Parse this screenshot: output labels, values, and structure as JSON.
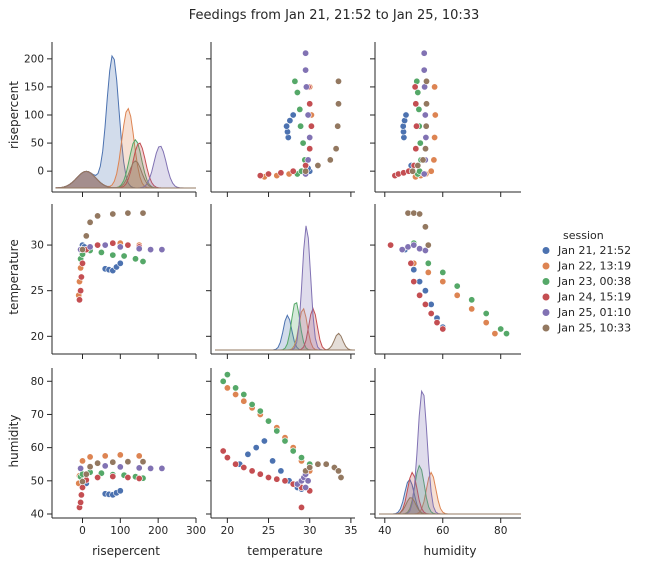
{
  "title": "Feedings from Jan 21, 21:52 to Jan 25, 10:33",
  "legend": {
    "title": "session",
    "placement": "right",
    "entries": [
      {
        "label": "Jan 21, 21:52",
        "color": "#4c72b0"
      },
      {
        "label": "Jan 22, 13:19",
        "color": "#dd8452"
      },
      {
        "label": "Jan 23, 00:38",
        "color": "#55a868"
      },
      {
        "label": "Jan 24, 15:19",
        "color": "#c44e52"
      },
      {
        "label": "Jan 25, 01:10",
        "color": "#8172b3"
      },
      {
        "label": "Jan 25, 10:33",
        "color": "#937860"
      }
    ]
  },
  "chart_data": {
    "type": "scatter",
    "kind": "pairplot",
    "variables": [
      "risepercent",
      "temperature",
      "humidity"
    ],
    "hue": "session",
    "diagonal": "kde",
    "axes": {
      "risepercent": {
        "label": "risepercent",
        "range": [
          -70,
          300
        ],
        "ticks": [
          0,
          100,
          200,
          300
        ],
        "row_ticks": [
          0,
          50,
          100,
          150,
          200
        ]
      },
      "temperature": {
        "label": "temperature",
        "range": [
          18.5,
          35.5
        ],
        "ticks": [
          20,
          25,
          30,
          35
        ],
        "row_ticks": [
          20,
          25,
          30
        ]
      },
      "humidity": {
        "label": "humidity",
        "range": [
          38,
          87
        ],
        "ticks": [
          40,
          60,
          80
        ],
        "row_ticks": [
          40,
          50,
          60,
          70,
          80
        ]
      }
    },
    "series": [
      {
        "name": "Jan 21, 21:52",
        "color": "#4c72b0",
        "rise_peak": 80,
        "kde_peak_rise": 220,
        "kde_peak_temp": 27.3,
        "kde_peak_hum": 48.5,
        "points_rise_temp": [
          [
            0,
            30
          ],
          [
            5,
            29.8
          ],
          [
            10,
            29.5
          ],
          [
            60,
            27.4
          ],
          [
            70,
            27.3
          ],
          [
            80,
            27.2
          ],
          [
            90,
            27.6
          ],
          [
            100,
            28.0
          ]
        ],
        "points_temp_hum": [
          [
            21.5,
            55
          ],
          [
            22.5,
            58
          ],
          [
            23.5,
            60
          ],
          [
            24.5,
            62
          ],
          [
            25.5,
            56
          ],
          [
            26.5,
            53
          ],
          [
            27.5,
            50
          ],
          [
            28.5,
            48
          ],
          [
            29,
            47.5
          ]
        ],
        "points_hum_temp": [
          [
            47,
            29.5
          ],
          [
            50,
            27.3
          ],
          [
            52,
            26
          ],
          [
            54,
            25
          ],
          [
            56,
            23.5
          ],
          [
            58,
            22
          ],
          [
            60,
            21
          ]
        ]
      },
      {
        "name": "Jan 22, 13:19",
        "color": "#dd8452",
        "rise_peak": 120,
        "kde_peak_rise": 132,
        "kde_peak_temp": 29.2,
        "kde_peak_hum": 56,
        "points_rise_temp": [
          [
            -10,
            24.5
          ],
          [
            -8,
            26
          ],
          [
            -5,
            27.5
          ],
          [
            0,
            29
          ],
          [
            20,
            29.8
          ],
          [
            60,
            30
          ],
          [
            100,
            30.2
          ],
          [
            150,
            30
          ]
        ],
        "points_temp_hum": [
          [
            20,
            78
          ],
          [
            21,
            76
          ],
          [
            22,
            74
          ],
          [
            23,
            72
          ],
          [
            24,
            70
          ],
          [
            25,
            68
          ],
          [
            26,
            66
          ],
          [
            27,
            63
          ],
          [
            28,
            60
          ],
          [
            29,
            56
          ],
          [
            30,
            53
          ]
        ],
        "points_hum_temp": [
          [
            48,
            29.8
          ],
          [
            50,
            28
          ],
          [
            55,
            27
          ],
          [
            60,
            26
          ],
          [
            65,
            24.5
          ],
          [
            70,
            23
          ],
          [
            75,
            21.5
          ],
          [
            78,
            20.3
          ]
        ]
      },
      {
        "name": "Jan 23, 00:38",
        "color": "#55a868",
        "rise_peak": 140,
        "kde_peak_rise": 80,
        "kde_peak_temp": 28.3,
        "kde_peak_hum": 52,
        "points_rise_temp": [
          [
            -5,
            28.5
          ],
          [
            0,
            29
          ],
          [
            20,
            29.4
          ],
          [
            50,
            29.2
          ],
          [
            80,
            28.9
          ],
          [
            110,
            28.8
          ],
          [
            140,
            28.5
          ],
          [
            160,
            28.2
          ]
        ],
        "points_temp_hum": [
          [
            19.5,
            80
          ],
          [
            20,
            82
          ],
          [
            21,
            78
          ],
          [
            22,
            76
          ],
          [
            23,
            73
          ],
          [
            24,
            71
          ],
          [
            25,
            68
          ],
          [
            26,
            65
          ],
          [
            27,
            62
          ],
          [
            28,
            59
          ],
          [
            29,
            57
          ],
          [
            30,
            55
          ]
        ],
        "points_hum_temp": [
          [
            50,
            30.2
          ],
          [
            55,
            28
          ],
          [
            60,
            27
          ],
          [
            65,
            25.5
          ],
          [
            70,
            24
          ],
          [
            75,
            22.5
          ],
          [
            80,
            20.8
          ],
          [
            82,
            20.3
          ]
        ]
      },
      {
        "name": "Jan 24, 15:19",
        "color": "#c44e52",
        "rise_peak": 150,
        "kde_peak_rise": 75,
        "kde_peak_temp": 30.4,
        "kde_peak_hum": 49.5,
        "points_rise_temp": [
          [
            -8,
            24
          ],
          [
            -5,
            25
          ],
          [
            -3,
            26.5
          ],
          [
            0,
            28
          ],
          [
            10,
            29.5
          ],
          [
            40,
            30
          ],
          [
            80,
            30.2
          ],
          [
            120,
            30
          ],
          [
            150,
            29.8
          ]
        ],
        "points_temp_hum": [
          [
            19.5,
            59
          ],
          [
            20,
            57
          ],
          [
            21,
            55
          ],
          [
            22,
            54
          ],
          [
            23,
            53
          ],
          [
            24,
            52
          ],
          [
            25,
            51
          ],
          [
            26,
            50.5
          ],
          [
            27,
            50
          ],
          [
            28,
            49
          ],
          [
            29,
            48
          ],
          [
            30,
            47
          ],
          [
            29,
            42
          ]
        ],
        "points_hum_temp": [
          [
            42,
            30
          ],
          [
            48,
            29.8
          ],
          [
            49,
            28
          ],
          [
            50,
            26
          ],
          [
            52,
            24.5
          ],
          [
            54,
            23.5
          ],
          [
            56,
            22.5
          ],
          [
            58,
            21.5
          ],
          [
            60,
            20.8
          ]
        ]
      },
      {
        "name": "Jan 25, 01:10",
        "color": "#8172b3",
        "rise_peak": 205,
        "kde_peak_rise": 70,
        "kde_peak_temp": 29.6,
        "kde_peak_hum": 53,
        "points_rise_temp": [
          [
            -5,
            29.5
          ],
          [
            20,
            29.8
          ],
          [
            60,
            30
          ],
          [
            100,
            29.8
          ],
          [
            150,
            29.6
          ],
          [
            180,
            29.5
          ],
          [
            210,
            29.5
          ]
        ],
        "points_temp_hum": [
          [
            28.5,
            49
          ],
          [
            29,
            50
          ],
          [
            29.3,
            51
          ],
          [
            29.5,
            52
          ],
          [
            29.8,
            50
          ],
          [
            29.5,
            48
          ]
        ],
        "points_hum_temp": [
          [
            46,
            29.5
          ],
          [
            48,
            29.8
          ],
          [
            50,
            30
          ],
          [
            52,
            29.6
          ],
          [
            54,
            29.4
          ]
        ]
      },
      {
        "name": "Jan 25, 10:33",
        "color": "#937860",
        "rise_peak": 140,
        "kde_peak_rise": 45,
        "kde_peak_temp": 33.5,
        "kde_peak_hum": 49,
        "points_rise_temp": [
          [
            0,
            29.5
          ],
          [
            10,
            31
          ],
          [
            20,
            32.5
          ],
          [
            40,
            33.2
          ],
          [
            80,
            33.4
          ],
          [
            120,
            33.5
          ],
          [
            160,
            33.5
          ]
        ],
        "points_temp_hum": [
          [
            29.5,
            53
          ],
          [
            30,
            54
          ],
          [
            31,
            55
          ],
          [
            32,
            55
          ],
          [
            33,
            54
          ],
          [
            33.5,
            53
          ],
          [
            33.8,
            51
          ]
        ],
        "points_hum_temp": [
          [
            48,
            33.5
          ],
          [
            50,
            33.5
          ],
          [
            52,
            33.4
          ],
          [
            54,
            32
          ],
          [
            55,
            30
          ]
        ]
      }
    ]
  }
}
